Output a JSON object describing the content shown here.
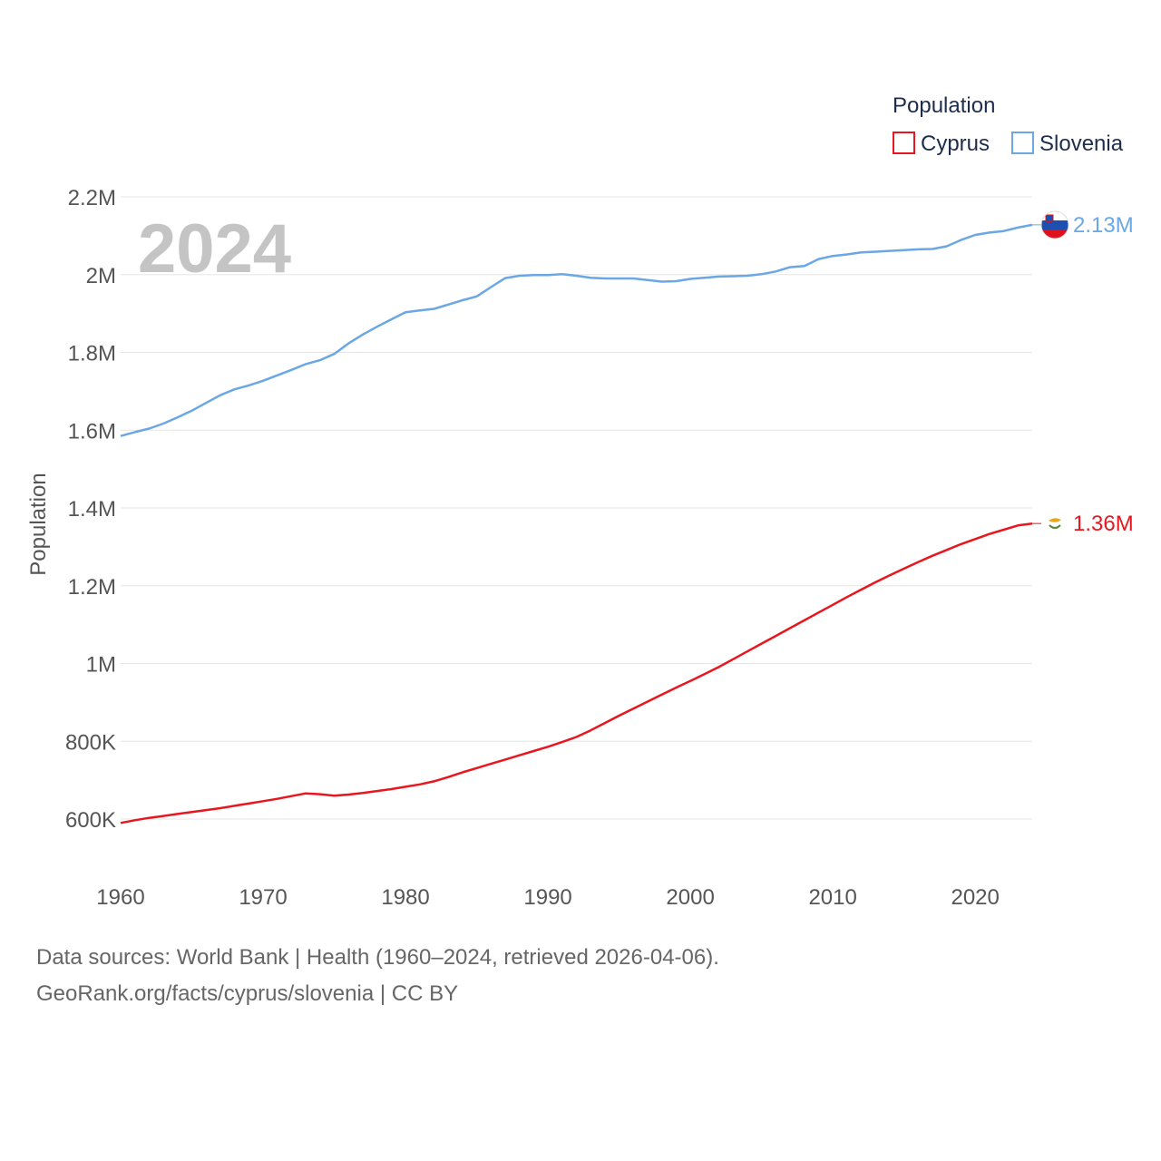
{
  "chart_data": {
    "type": "line",
    "legend_title": "Population",
    "ylabel": "Population",
    "current_year": "2024",
    "ylim": [
      500000,
      2200000
    ],
    "xlim": [
      1960,
      2024
    ],
    "y_ticks": [
      {
        "value": 600000,
        "label": "600K"
      },
      {
        "value": 800000,
        "label": "800K"
      },
      {
        "value": 1000000,
        "label": "1M"
      },
      {
        "value": 1200000,
        "label": "1.2M"
      },
      {
        "value": 1400000,
        "label": "1.4M"
      },
      {
        "value": 1600000,
        "label": "1.6M"
      },
      {
        "value": 1800000,
        "label": "1.8M"
      },
      {
        "value": 2000000,
        "label": "2M"
      },
      {
        "value": 2200000,
        "label": "2.2M"
      }
    ],
    "x_ticks": [
      {
        "value": 1960,
        "label": "1960"
      },
      {
        "value": 1970,
        "label": "1970"
      },
      {
        "value": 1980,
        "label": "1980"
      },
      {
        "value": 1990,
        "label": "1990"
      },
      {
        "value": 2000,
        "label": "2000"
      },
      {
        "value": 2010,
        "label": "2010"
      },
      {
        "value": 2020,
        "label": "2020"
      }
    ],
    "series": [
      {
        "name": "Cyprus",
        "color": "#e8171f",
        "end_label": "1.36M",
        "points": [
          [
            1960,
            590000
          ],
          [
            1961,
            597000
          ],
          [
            1962,
            603000
          ],
          [
            1963,
            608000
          ],
          [
            1964,
            613000
          ],
          [
            1965,
            618000
          ],
          [
            1966,
            623000
          ],
          [
            1967,
            628000
          ],
          [
            1968,
            634000
          ],
          [
            1969,
            640000
          ],
          [
            1970,
            646000
          ],
          [
            1971,
            652000
          ],
          [
            1972,
            659000
          ],
          [
            1973,
            666000
          ],
          [
            1974,
            664000
          ],
          [
            1975,
            660000
          ],
          [
            1976,
            663000
          ],
          [
            1977,
            667000
          ],
          [
            1978,
            672000
          ],
          [
            1979,
            677000
          ],
          [
            1980,
            683000
          ],
          [
            1981,
            689000
          ],
          [
            1982,
            697000
          ],
          [
            1983,
            708000
          ],
          [
            1984,
            720000
          ],
          [
            1985,
            731000
          ],
          [
            1986,
            742000
          ],
          [
            1987,
            753000
          ],
          [
            1988,
            764000
          ],
          [
            1989,
            775000
          ],
          [
            1990,
            786000
          ],
          [
            1991,
            798000
          ],
          [
            1992,
            811000
          ],
          [
            1993,
            828000
          ],
          [
            1994,
            847000
          ],
          [
            1995,
            866000
          ],
          [
            1996,
            884000
          ],
          [
            1997,
            902000
          ],
          [
            1998,
            920000
          ],
          [
            1999,
            938000
          ],
          [
            2000,
            955000
          ],
          [
            2001,
            973000
          ],
          [
            2002,
            991000
          ],
          [
            2003,
            1011000
          ],
          [
            2004,
            1031000
          ],
          [
            2005,
            1051000
          ],
          [
            2006,
            1071000
          ],
          [
            2007,
            1091000
          ],
          [
            2008,
            1111000
          ],
          [
            2009,
            1131000
          ],
          [
            2010,
            1151000
          ],
          [
            2011,
            1171000
          ],
          [
            2012,
            1190000
          ],
          [
            2013,
            1209000
          ],
          [
            2014,
            1227000
          ],
          [
            2015,
            1244000
          ],
          [
            2016,
            1261000
          ],
          [
            2017,
            1277000
          ],
          [
            2018,
            1292000
          ],
          [
            2019,
            1307000
          ],
          [
            2020,
            1320000
          ],
          [
            2021,
            1333000
          ],
          [
            2022,
            1344000
          ],
          [
            2023,
            1355000
          ],
          [
            2024,
            1360000
          ]
        ]
      },
      {
        "name": "Slovenia",
        "color": "#6aa7e4",
        "end_label": "2.13M",
        "points": [
          [
            1960,
            1585000
          ],
          [
            1961,
            1595000
          ],
          [
            1962,
            1604000
          ],
          [
            1963,
            1617000
          ],
          [
            1964,
            1633000
          ],
          [
            1965,
            1650000
          ],
          [
            1966,
            1670000
          ],
          [
            1967,
            1690000
          ],
          [
            1968,
            1705000
          ],
          [
            1969,
            1715000
          ],
          [
            1970,
            1727000
          ],
          [
            1971,
            1741000
          ],
          [
            1972,
            1755000
          ],
          [
            1973,
            1770000
          ],
          [
            1974,
            1780000
          ],
          [
            1975,
            1796000
          ],
          [
            1976,
            1823000
          ],
          [
            1977,
            1846000
          ],
          [
            1978,
            1866000
          ],
          [
            1979,
            1885000
          ],
          [
            1980,
            1903000
          ],
          [
            1981,
            1908000
          ],
          [
            1982,
            1912000
          ],
          [
            1983,
            1923000
          ],
          [
            1984,
            1934000
          ],
          [
            1985,
            1944000
          ],
          [
            1986,
            1968000
          ],
          [
            1987,
            1991000
          ],
          [
            1988,
            1997000
          ],
          [
            1989,
            1999000
          ],
          [
            1990,
            1999000
          ],
          [
            1991,
            2001000
          ],
          [
            1992,
            1997000
          ],
          [
            1993,
            1992000
          ],
          [
            1994,
            1990000
          ],
          [
            1995,
            1990000
          ],
          [
            1996,
            1990000
          ],
          [
            1997,
            1986000
          ],
          [
            1998,
            1982000
          ],
          [
            1999,
            1983000
          ],
          [
            2000,
            1989000
          ],
          [
            2001,
            1992000
          ],
          [
            2002,
            1995000
          ],
          [
            2003,
            1996000
          ],
          [
            2004,
            1997000
          ],
          [
            2005,
            2001000
          ],
          [
            2006,
            2008000
          ],
          [
            2007,
            2019000
          ],
          [
            2008,
            2022000
          ],
          [
            2009,
            2040000
          ],
          [
            2010,
            2048000
          ],
          [
            2011,
            2052000
          ],
          [
            2012,
            2057000
          ],
          [
            2013,
            2059000
          ],
          [
            2014,
            2061000
          ],
          [
            2015,
            2063000
          ],
          [
            2016,
            2065000
          ],
          [
            2017,
            2066000
          ],
          [
            2018,
            2073000
          ],
          [
            2019,
            2089000
          ],
          [
            2020,
            2102000
          ],
          [
            2021,
            2108000
          ],
          [
            2022,
            2112000
          ],
          [
            2023,
            2121000
          ],
          [
            2024,
            2128000
          ]
        ]
      }
    ]
  },
  "footer": {
    "line1": "Data sources: World Bank | Health (1960–2024, retrieved 2026-04-06).",
    "line2": "GeoRank.org/facts/cyprus/slovenia | CC BY"
  }
}
